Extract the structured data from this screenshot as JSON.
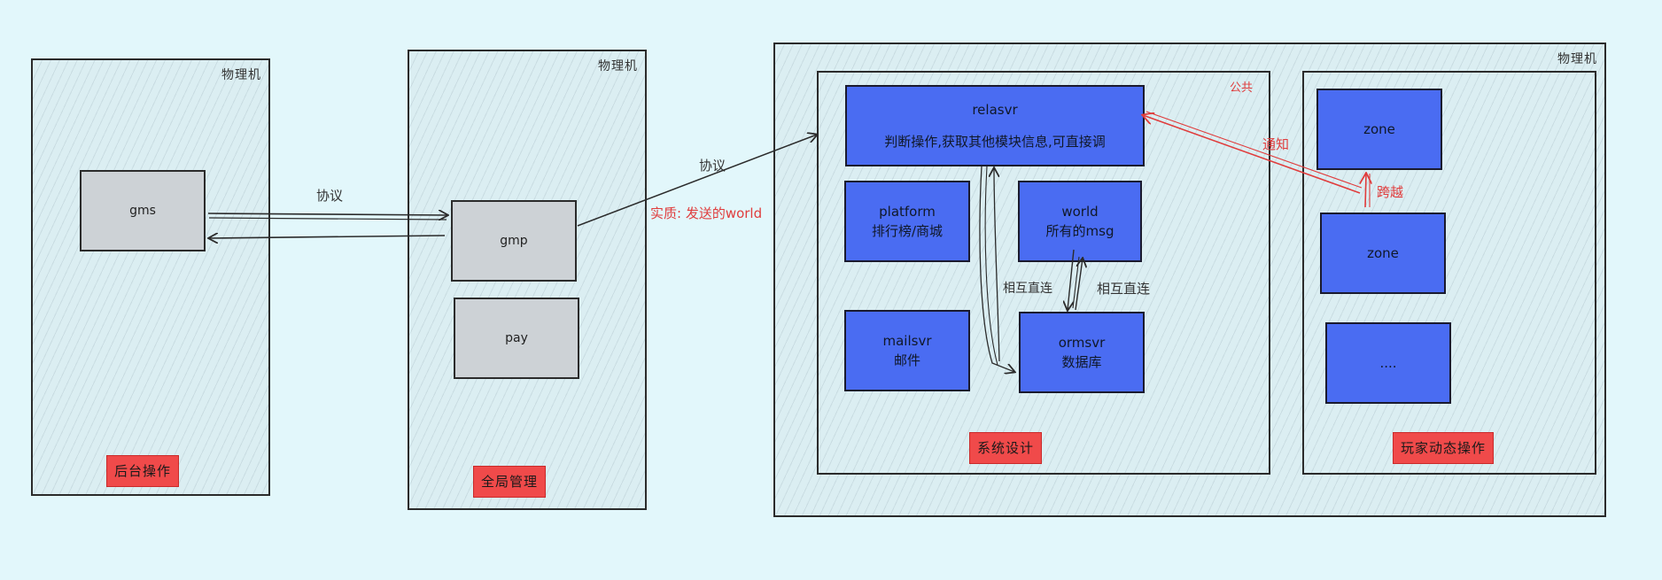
{
  "machine_label": "物理机",
  "machine1": {
    "gms": "gms",
    "tag": "后台操作"
  },
  "machine2": {
    "gmp": "gmp",
    "pay": "pay",
    "tag": "全局管理"
  },
  "machine3": {
    "system": {
      "label": "公共",
      "relasvr_title": "relasvr",
      "relasvr_desc": "判断操作,获取其他模块信息,可直接调",
      "platform_title": "platform",
      "platform_desc": "排行榜/商城",
      "world_title": "world",
      "world_desc": "所有的msg",
      "mailsvr_title": "mailsvr",
      "mailsvr_desc": "邮件",
      "ormsvr_title": "ormsvr",
      "ormsvr_desc": "数据库",
      "direct_left": "相互直连",
      "direct_right": "相互直连",
      "tag": "系统设计"
    },
    "zones": {
      "zone1": "zone",
      "zone2": "zone",
      "more": "....",
      "cross": "跨越",
      "tag": "玩家动态操作"
    },
    "notify": "通知"
  },
  "arrows": {
    "protocol1": "协议",
    "protocol2": "协议",
    "essence": "实质: 发送的world"
  },
  "colors": {
    "background": "#e2f7fb",
    "server_blue": "#4a6cf2",
    "tag_red": "#f04a4a",
    "annotation_red": "#e03c3c"
  }
}
